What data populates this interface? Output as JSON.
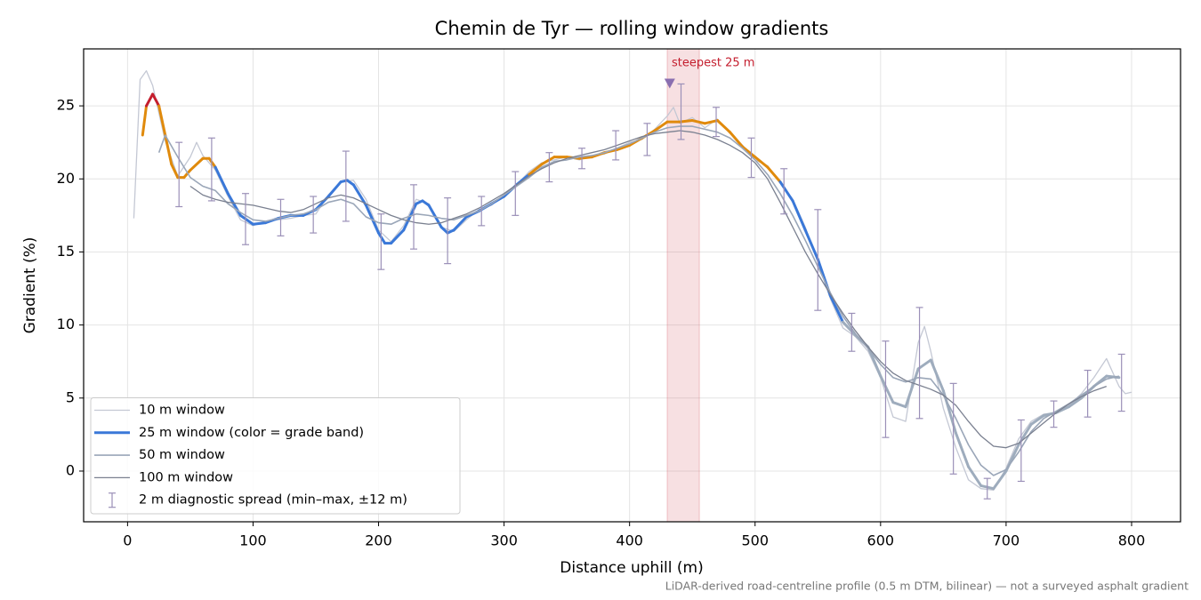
{
  "chart_data": {
    "type": "line",
    "title": "Chemin de Tyr — rolling window gradients",
    "x_label": "Distance uphill (m)",
    "y_label": "Gradient (%)",
    "note": "LiDAR-derived road-centreline profile (0.5 m DTM, bilinear) — not a surveyed asphalt gradient",
    "xlim": [
      -35,
      839
    ],
    "ylim": [
      -3.47,
      28.9
    ],
    "xticks": [
      0,
      100,
      200,
      300,
      400,
      500,
      600,
      700,
      800
    ],
    "yticks": [
      0,
      5,
      10,
      15,
      20,
      25
    ],
    "grid": true,
    "legend": "lower left",
    "series": [
      {
        "name": "10 m window",
        "color": "#c4c8d4",
        "width": 1.3,
        "x": [
          5,
          10,
          15,
          20,
          30,
          40,
          50,
          55,
          60,
          70,
          80,
          90,
          100,
          110,
          120,
          130,
          140,
          150,
          160,
          170,
          180,
          190,
          200,
          210,
          220,
          230,
          240,
          250,
          260,
          270,
          280,
          290,
          300,
          310,
          320,
          330,
          340,
          350,
          360,
          370,
          380,
          390,
          400,
          410,
          420,
          430,
          435,
          440,
          450,
          460,
          470,
          480,
          490,
          500,
          510,
          520,
          530,
          540,
          550,
          560,
          570,
          580,
          590,
          600,
          610,
          620,
          630,
          635,
          640,
          650,
          660,
          670,
          680,
          690,
          700,
          710,
          720,
          730,
          740,
          750,
          760,
          770,
          780,
          790,
          795,
          800
        ],
        "values": [
          17.3,
          26.8,
          27.4,
          26.4,
          22.6,
          20.2,
          21.5,
          22.5,
          21.6,
          20.6,
          18.8,
          17.2,
          16.8,
          17.1,
          17.2,
          17.3,
          17.5,
          17.6,
          18.9,
          19.8,
          19.9,
          18.6,
          16.5,
          15.7,
          16.8,
          18.6,
          18.3,
          16.7,
          16.4,
          17.2,
          17.9,
          18.2,
          18.9,
          19.6,
          20.5,
          21.1,
          21.3,
          21.5,
          21.3,
          21.6,
          21.7,
          22.1,
          22.5,
          22.7,
          23.4,
          24.3,
          24.9,
          23.8,
          24.2,
          23.5,
          24.1,
          23.1,
          22.3,
          21.3,
          20.9,
          19.7,
          18.6,
          16.7,
          14.3,
          11.8,
          9.8,
          9.2,
          8.2,
          6.4,
          3.7,
          3.4,
          8.8,
          9.9,
          8.2,
          4.3,
          1.6,
          -0.6,
          -1.2,
          -1.3,
          0.2,
          2.2,
          3.4,
          3.9,
          4.0,
          4.5,
          5.3,
          6.4,
          7.7,
          5.8,
          5.3,
          5.4
        ]
      },
      {
        "name": "25 m window (color = grade band)",
        "color": "#3a78d8",
        "width": 3,
        "band_colors": [
          [
            25,
            "#c41e2e"
          ],
          [
            20,
            "#e08a0c"
          ],
          [
            10,
            "#3a78d8"
          ]
        ],
        "low_color": "#9eacbd",
        "x": [
          12,
          15,
          20,
          25,
          30,
          35,
          40,
          45,
          50,
          60,
          65,
          70,
          80,
          90,
          100,
          110,
          120,
          130,
          140,
          150,
          160,
          170,
          175,
          180,
          190,
          200,
          205,
          210,
          220,
          230,
          235,
          240,
          250,
          255,
          260,
          270,
          280,
          290,
          300,
          310,
          320,
          330,
          340,
          350,
          360,
          370,
          380,
          390,
          400,
          410,
          420,
          430,
          440,
          450,
          460,
          470,
          480,
          490,
          500,
          510,
          520,
          530,
          540,
          550,
          560,
          570,
          580,
          590,
          600,
          610,
          620,
          630,
          640,
          650,
          660,
          670,
          680,
          690,
          700,
          710,
          720,
          730,
          740,
          750,
          760,
          770,
          780,
          790
        ],
        "values": [
          23,
          25,
          25.8,
          25,
          23,
          21,
          20.1,
          20.1,
          20.6,
          21.4,
          21.4,
          20.8,
          19,
          17.5,
          16.9,
          17,
          17.3,
          17.5,
          17.5,
          17.9,
          18.8,
          19.8,
          19.9,
          19.6,
          18.2,
          16.3,
          15.6,
          15.6,
          16.5,
          18.3,
          18.5,
          18.2,
          16.7,
          16.3,
          16.5,
          17.4,
          17.8,
          18.3,
          18.8,
          19.6,
          20.3,
          21,
          21.5,
          21.5,
          21.4,
          21.5,
          21.8,
          22,
          22.3,
          22.8,
          23.3,
          23.9,
          23.9,
          24,
          23.8,
          24,
          23.2,
          22.2,
          21.5,
          20.8,
          19.8,
          18.5,
          16.5,
          14.5,
          12,
          10.2,
          9.3,
          8.5,
          6.5,
          4.7,
          4.4,
          7,
          7.6,
          5.5,
          2.6,
          0.3,
          -1,
          -1.2,
          0,
          1.8,
          3.2,
          3.8,
          4,
          4.4,
          5,
          5.8,
          6.5,
          6.4
        ]
      },
      {
        "name": "50 m window",
        "color": "#9aa6b8",
        "width": 1.6,
        "x": [
          25,
          30,
          40,
          50,
          60,
          70,
          80,
          90,
          100,
          110,
          120,
          130,
          140,
          150,
          160,
          170,
          180,
          190,
          200,
          210,
          220,
          230,
          240,
          250,
          260,
          270,
          280,
          290,
          300,
          310,
          320,
          330,
          340,
          350,
          360,
          370,
          380,
          390,
          400,
          410,
          420,
          430,
          440,
          450,
          460,
          470,
          480,
          490,
          500,
          510,
          520,
          530,
          540,
          550,
          560,
          570,
          580,
          590,
          600,
          610,
          620,
          630,
          640,
          650,
          660,
          670,
          680,
          690,
          700,
          710,
          720,
          730,
          740,
          750,
          760,
          770,
          780,
          790
        ],
        "values": [
          21.8,
          23,
          21.5,
          20.1,
          19.5,
          19.2,
          18.3,
          17.7,
          17.2,
          17.1,
          17.3,
          17.5,
          17.6,
          17.9,
          18.4,
          18.6,
          18.3,
          17.4,
          17,
          16.9,
          17.3,
          17.6,
          17.5,
          17.3,
          17.2,
          17.5,
          17.8,
          18.3,
          18.9,
          19.5,
          20.1,
          20.8,
          21.2,
          21.3,
          21.5,
          21.6,
          21.8,
          22.1,
          22.4,
          22.8,
          23.2,
          23.5,
          23.6,
          23.6,
          23.4,
          23.2,
          22.8,
          22.1,
          21.3,
          20.3,
          19,
          17.5,
          15.8,
          14,
          12.2,
          10.6,
          9.4,
          8.4,
          7.3,
          6.4,
          6.1,
          6.4,
          6.3,
          5.2,
          3.6,
          1.8,
          0.4,
          -0.3,
          0.1,
          1.3,
          2.7,
          3.6,
          4.1,
          4.6,
          5.2,
          5.8,
          6.3,
          6.5
        ]
      },
      {
        "name": "100 m window",
        "color": "#7a8090",
        "width": 1.3,
        "x": [
          50,
          60,
          70,
          80,
          90,
          100,
          110,
          120,
          130,
          140,
          150,
          160,
          170,
          180,
          190,
          200,
          210,
          220,
          230,
          240,
          250,
          260,
          270,
          280,
          290,
          300,
          310,
          320,
          330,
          340,
          350,
          360,
          370,
          380,
          390,
          400,
          410,
          420,
          430,
          440,
          450,
          460,
          470,
          480,
          490,
          500,
          510,
          520,
          530,
          540,
          550,
          560,
          570,
          580,
          590,
          600,
          610,
          620,
          630,
          640,
          650,
          660,
          670,
          680,
          690,
          700,
          710,
          720,
          730,
          740,
          750,
          760,
          770,
          780
        ],
        "values": [
          19.5,
          18.9,
          18.6,
          18.4,
          18.3,
          18.2,
          18,
          17.8,
          17.7,
          17.9,
          18.3,
          18.7,
          18.9,
          18.7,
          18.3,
          17.9,
          17.5,
          17.2,
          17,
          16.9,
          17,
          17.3,
          17.6,
          18,
          18.5,
          19,
          19.6,
          20.2,
          20.7,
          21.1,
          21.4,
          21.6,
          21.8,
          22,
          22.3,
          22.6,
          22.9,
          23.1,
          23.2,
          23.3,
          23.2,
          23,
          22.7,
          22.3,
          21.8,
          21.1,
          20,
          18.4,
          16.7,
          15,
          13.5,
          12.1,
          10.8,
          9.6,
          8.5,
          7.5,
          6.7,
          6.2,
          5.9,
          5.6,
          5.2,
          4.5,
          3.4,
          2.4,
          1.7,
          1.6,
          1.9,
          2.6,
          3.3,
          4,
          4.6,
          5.1,
          5.5,
          5.8
        ]
      }
    ],
    "error_bars": {
      "name": "2 m diagnostic spread (min–max, ±12 m)",
      "color": "#9b90b8",
      "x": [
        41,
        67,
        94,
        122,
        148,
        174,
        202,
        228,
        255,
        282,
        309,
        336,
        362,
        389,
        414,
        441,
        469,
        497,
        523,
        550,
        577,
        604,
        631,
        658,
        685,
        712,
        738,
        765,
        792
      ],
      "low": [
        18.1,
        18.5,
        15.5,
        16.1,
        16.3,
        17.1,
        13.8,
        15.2,
        14.2,
        16.8,
        17.5,
        19.8,
        20.7,
        21.3,
        21.6,
        22.7,
        22.9,
        20.1,
        17.6,
        11,
        8.2,
        2.3,
        3.6,
        -0.2,
        -1.9,
        -0.7,
        3,
        3.7,
        4.1
      ],
      "high": [
        22.5,
        22.8,
        19,
        18.6,
        18.8,
        21.9,
        17.6,
        19.6,
        18.7,
        18.8,
        20.5,
        21.8,
        22.1,
        23.3,
        23.8,
        26.5,
        24.9,
        22.8,
        20.7,
        17.9,
        10.8,
        8.9,
        11.2,
        6,
        -0.5,
        3.5,
        4.8,
        6.9,
        8
      ]
    },
    "highlight": {
      "label": "steepest 25 m",
      "x": [
        430,
        455.6
      ],
      "color": "#d9646e",
      "label_color": "#c41e2e",
      "marker": {
        "x": 432,
        "y": 26.5,
        "color": "#8a6fb0"
      }
    }
  }
}
